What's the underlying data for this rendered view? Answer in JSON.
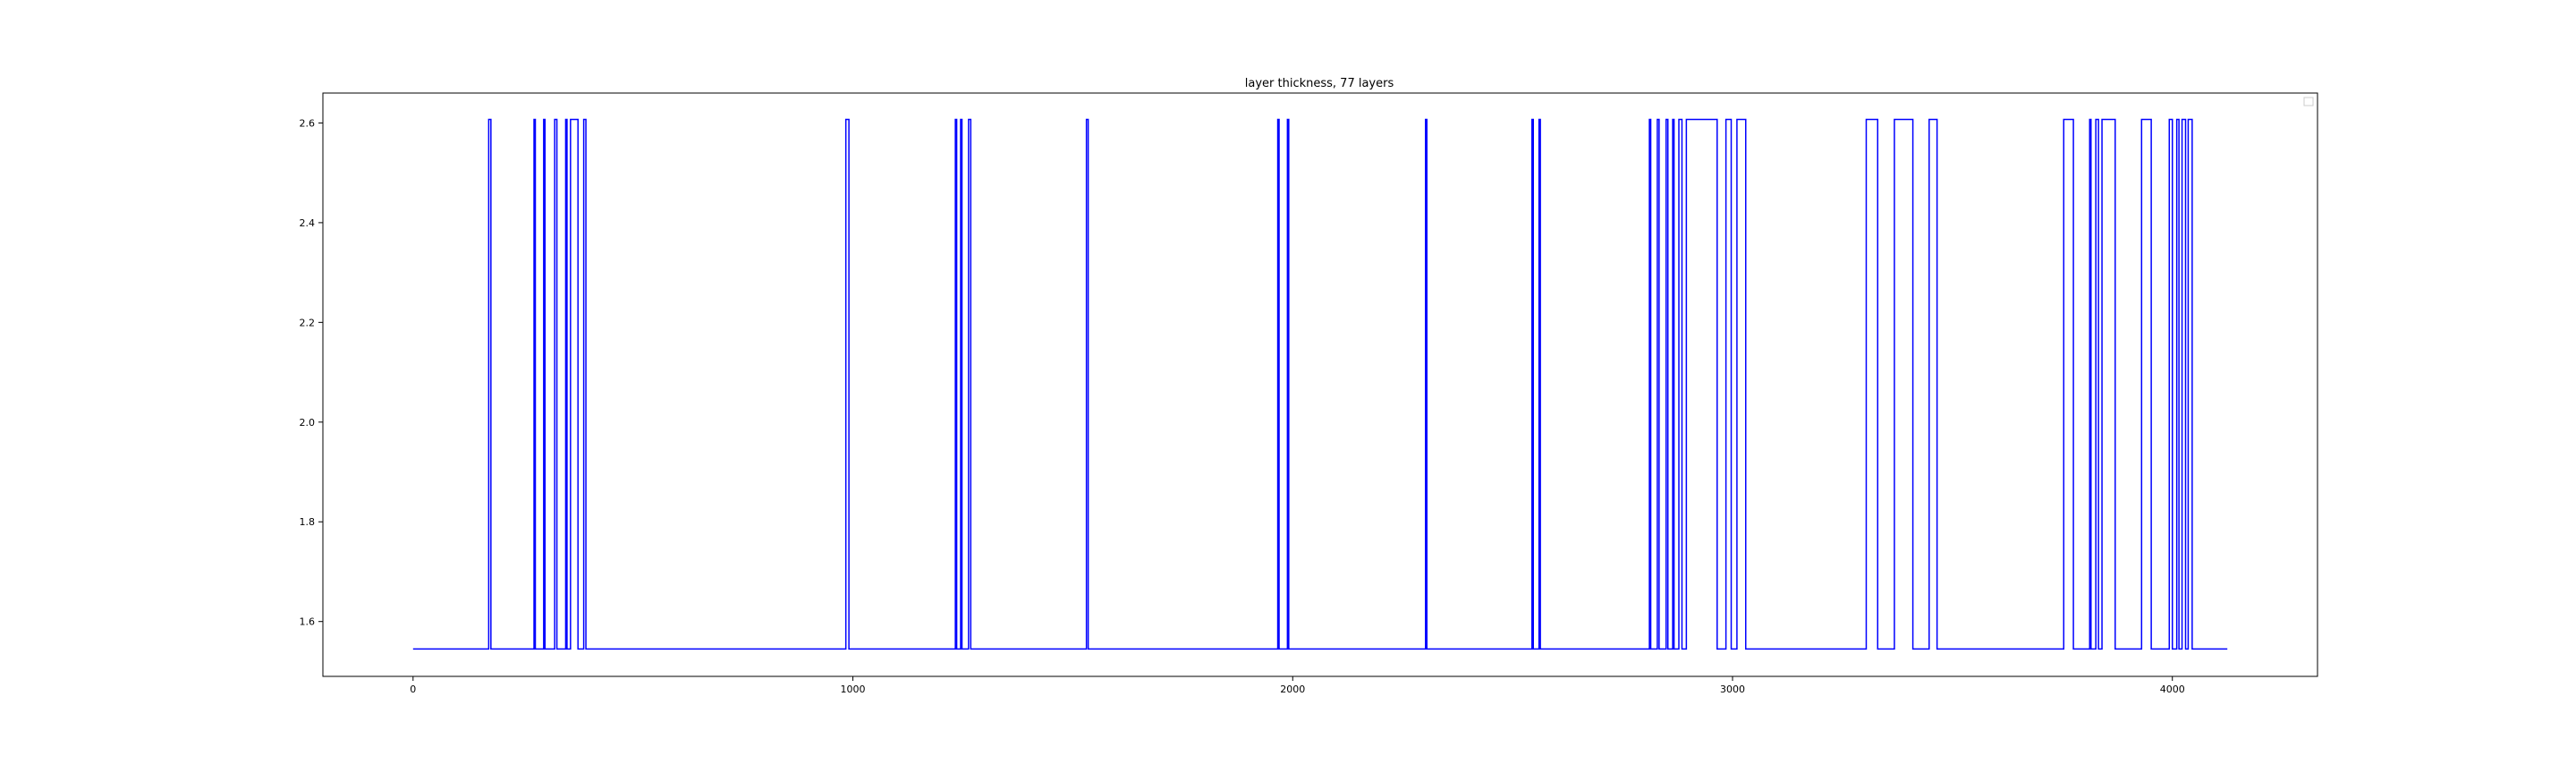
{
  "chart_data": {
    "type": "line",
    "drawstyle": "steps",
    "title": "layer thickness, 77 layers",
    "xlabel": "",
    "ylabel": "",
    "xlim": [
      -205,
      4330
    ],
    "ylim": [
      1.49,
      2.66
    ],
    "xticks": [
      0,
      1000,
      2000,
      3000,
      4000
    ],
    "yticks": [
      1.6,
      1.8,
      2.0,
      2.2,
      2.4,
      2.6
    ],
    "ytick_labels": [
      "1.6",
      "1.8",
      "2.0",
      "2.2",
      "2.4",
      "2.6"
    ],
    "grid": false,
    "legend": "top-right, empty",
    "series_color": "#0000ff",
    "levels": {
      "low": 1.545,
      "high": 2.607
    },
    "x_end": 4125,
    "high_intervals": [
      [
        172,
        177
      ],
      [
        275,
        278
      ],
      [
        297,
        300
      ],
      [
        322,
        327
      ],
      [
        347,
        350
      ],
      [
        358,
        375
      ],
      [
        388,
        393
      ],
      [
        984,
        991
      ],
      [
        1233,
        1236
      ],
      [
        1245,
        1248
      ],
      [
        1263,
        1268
      ],
      [
        1531,
        1535
      ],
      [
        1966,
        1969
      ],
      [
        1988,
        1991
      ],
      [
        2302,
        2305
      ],
      [
        2544,
        2547
      ],
      [
        2560,
        2563
      ],
      [
        2811,
        2814
      ],
      [
        2829,
        2833
      ],
      [
        2849,
        2853
      ],
      [
        2864,
        2867
      ],
      [
        2878,
        2885
      ],
      [
        2895,
        2965
      ],
      [
        2985,
        2997
      ],
      [
        3010,
        3030
      ],
      [
        3304,
        3330
      ],
      [
        3368,
        3410
      ],
      [
        3447,
        3465
      ],
      [
        3753,
        3775
      ],
      [
        3812,
        3815
      ],
      [
        3826,
        3832
      ],
      [
        3840,
        3870
      ],
      [
        3930,
        3952
      ],
      [
        3993,
        4000
      ],
      [
        4010,
        4015
      ],
      [
        4022,
        4030
      ],
      [
        4036,
        4045
      ]
    ]
  }
}
